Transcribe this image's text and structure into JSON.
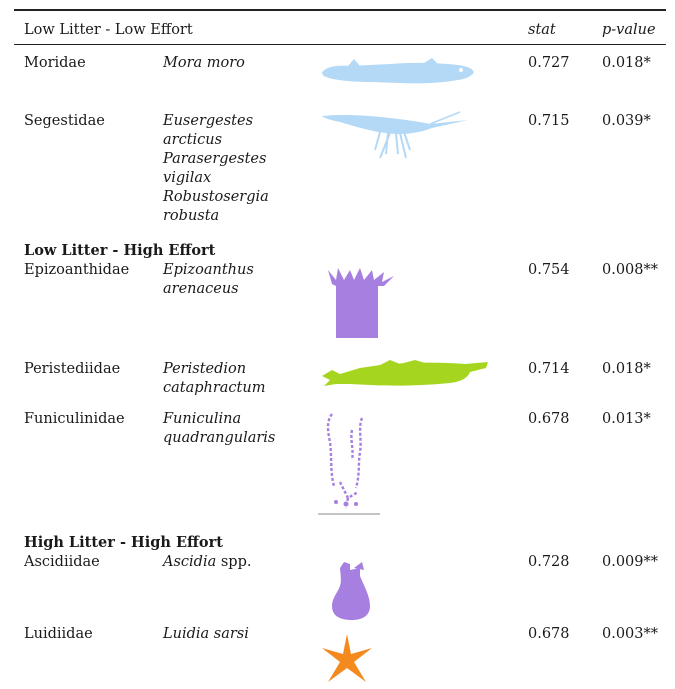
{
  "header": {
    "group": "Low Litter - Low Effort",
    "stat": "stat",
    "pvalue": "p-value"
  },
  "groups": [
    {
      "title": "Low Litter - Low Effort",
      "rows": [
        {
          "family": "Moridae",
          "species": [
            "Mora moro"
          ],
          "stat": "0.727",
          "p": "0.018*",
          "icon": "fish-silhouette",
          "color": "#b3d9f7"
        },
        {
          "family": "Segestidae",
          "species": [
            "Eusergestes",
            "arcticus",
            "Parasergestes",
            "vigilax",
            "Robustosergia",
            "robusta"
          ],
          "stat": "0.715",
          "p": "0.039*",
          "icon": "shrimp-silhouette",
          "color": "#b3d9f7"
        }
      ]
    },
    {
      "title": "Low Litter - High Effort",
      "rows": [
        {
          "family": "Epizoanthidae",
          "species": [
            "Epizoanthus",
            "arenaceus"
          ],
          "stat": "0.754",
          "p": "0.008**",
          "icon": "anemone-silhouette",
          "color": "#a77fe0"
        },
        {
          "family": "Peristediidae",
          "species": [
            "Peristedion",
            "cataphractum"
          ],
          "stat": "0.714",
          "p": "0.018*",
          "icon": "fish-silhouette",
          "color": "#a6d51f"
        },
        {
          "family": "Funiculinidae",
          "species": [
            "Funiculina",
            "quadrangularis"
          ],
          "stat": "0.678",
          "p": "0.013*",
          "icon": "sea-pen-silhouette",
          "color": "#a77fe0"
        }
      ]
    },
    {
      "title": "High Litter - High Effort",
      "rows": [
        {
          "family": "Ascidiidae",
          "species_italic": "Ascidia",
          "species_suffix": " spp.",
          "stat": "0.728",
          "p": "0.009**",
          "icon": "ascidian-silhouette",
          "color": "#a77fe0"
        },
        {
          "family": "Luidiidae",
          "species": [
            "Luidia sarsi"
          ],
          "stat": "0.678",
          "p": "0.003**",
          "icon": "starfish-silhouette",
          "color": "#f48a1e"
        }
      ]
    }
  ]
}
